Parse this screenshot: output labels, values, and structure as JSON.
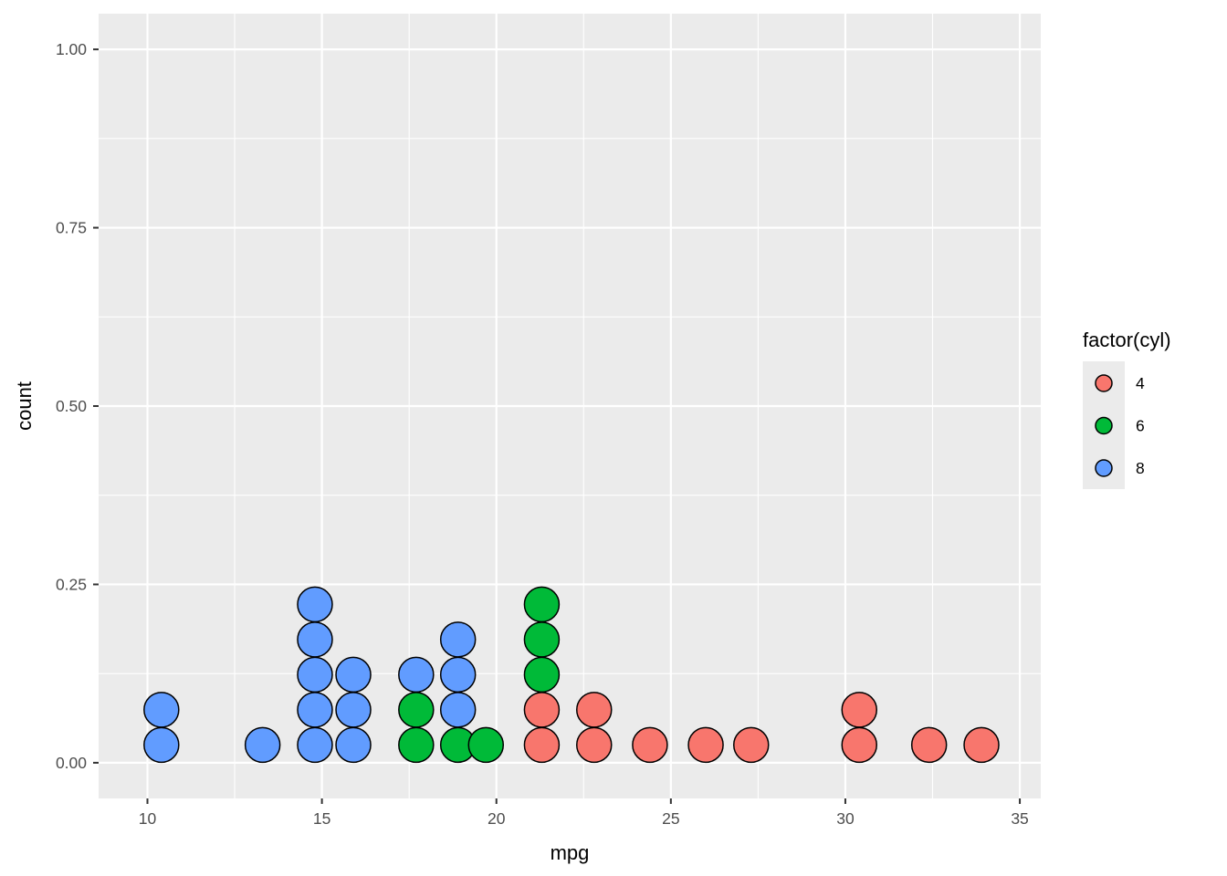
{
  "chart_data": {
    "type": "dotplot",
    "title": "",
    "xlabel": "mpg",
    "ylabel": "count",
    "xlim": [
      8.6,
      35.6
    ],
    "ylim": [
      -0.05,
      1.05
    ],
    "x_ticks": [
      10,
      15,
      20,
      25,
      30,
      35
    ],
    "x_tick_labels": [
      "10",
      "15",
      "20",
      "25",
      "30",
      "35"
    ],
    "y_ticks": [
      0,
      0.25,
      0.5,
      0.75,
      1.0
    ],
    "y_tick_labels": [
      "0.00",
      "0.25",
      "0.50",
      "0.75",
      "1.00"
    ],
    "grid": true,
    "legend": {
      "title": "factor(cyl)",
      "position": "right",
      "entries": [
        {
          "label": "4",
          "color": "#F8766D"
        },
        {
          "label": "6",
          "color": "#00BA38"
        },
        {
          "label": "8",
          "color": "#619CFF"
        }
      ]
    },
    "series": [
      {
        "name": "4",
        "color": "#F8766D",
        "stacks": [
          {
            "x": 21.3,
            "count": 2
          },
          {
            "x": 22.8,
            "count": 2
          },
          {
            "x": 24.4,
            "count": 1
          },
          {
            "x": 26.0,
            "count": 1
          },
          {
            "x": 27.3,
            "count": 1
          },
          {
            "x": 30.4,
            "count": 2
          },
          {
            "x": 32.4,
            "count": 1
          },
          {
            "x": 33.9,
            "count": 1
          }
        ]
      },
      {
        "name": "6",
        "color": "#00BA38",
        "stacks": [
          {
            "x": 17.7,
            "count": 2
          },
          {
            "x": 18.9,
            "count": 1
          },
          {
            "x": 19.7,
            "count": 1
          },
          {
            "x": 21.3,
            "count": 3
          }
        ]
      },
      {
        "name": "8",
        "color": "#619CFF",
        "stacks": [
          {
            "x": 10.4,
            "count": 2
          },
          {
            "x": 13.3,
            "count": 1
          },
          {
            "x": 14.8,
            "count": 5
          },
          {
            "x": 15.9,
            "count": 3
          },
          {
            "x": 17.7,
            "count": 1
          },
          {
            "x": 18.9,
            "count": 3
          }
        ]
      }
    ],
    "stacking_order_at_shared_x": [
      "4",
      "6",
      "8"
    ]
  }
}
